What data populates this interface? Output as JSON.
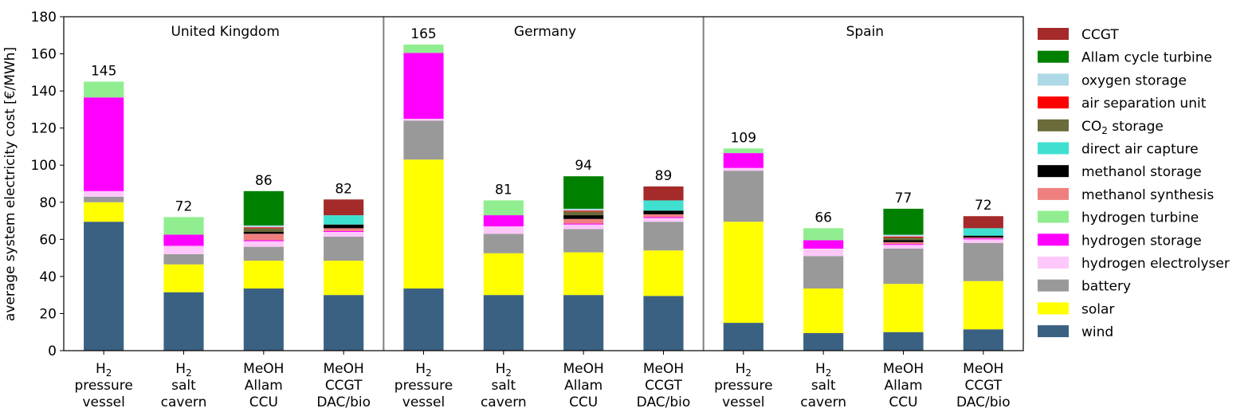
{
  "chart_data": {
    "type": "bar",
    "stacked": true,
    "ylabel": "average system electricity cost [€/MWh]",
    "ylim": [
      0,
      180
    ],
    "yticks": [
      0,
      20,
      40,
      60,
      80,
      100,
      120,
      140,
      160,
      180
    ],
    "grid": false,
    "legend_position": "right",
    "groups": [
      {
        "name": "United Kingdom",
        "categories": [
          {
            "line1": "H",
            "sub": "2",
            "line2": "pressure",
            "line3": "vessel",
            "total": "145"
          },
          {
            "line1": "H",
            "sub": "2",
            "line2": "salt",
            "line3": "cavern",
            "total": "72"
          },
          {
            "line1": "MeOH",
            "sub": "",
            "line2": "Allam",
            "line3": "CCU",
            "total": "86"
          },
          {
            "line1": "MeOH",
            "sub": "",
            "line2": "CCGT",
            "line3": "DAC/bio",
            "total": "82"
          }
        ]
      },
      {
        "name": "Germany",
        "categories": [
          {
            "line1": "H",
            "sub": "2",
            "line2": "pressure",
            "line3": "vessel",
            "total": "165"
          },
          {
            "line1": "H",
            "sub": "2",
            "line2": "salt",
            "line3": "cavern",
            "total": "81"
          },
          {
            "line1": "MeOH",
            "sub": "",
            "line2": "Allam",
            "line3": "CCU",
            "total": "94"
          },
          {
            "line1": "MeOH",
            "sub": "",
            "line2": "CCGT",
            "line3": "DAC/bio",
            "total": "89"
          }
        ]
      },
      {
        "name": "Spain",
        "categories": [
          {
            "line1": "H",
            "sub": "2",
            "line2": "pressure",
            "line3": "vessel",
            "total": "109"
          },
          {
            "line1": "H",
            "sub": "2",
            "line2": "salt",
            "line3": "cavern",
            "total": "66"
          },
          {
            "line1": "MeOH",
            "sub": "",
            "line2": "Allam",
            "line3": "CCU",
            "total": "77"
          },
          {
            "line1": "MeOH",
            "sub": "",
            "line2": "CCGT",
            "line3": "DAC/bio",
            "total": "72"
          }
        ]
      }
    ],
    "series": [
      {
        "name": "wind",
        "color": "#3b6182",
        "values": [
          69.5,
          31.5,
          33.5,
          30,
          33.5,
          30,
          30,
          29.5,
          15,
          9.5,
          10,
          11.5
        ]
      },
      {
        "name": "solar",
        "color": "#ffff00",
        "values": [
          10.5,
          15,
          15,
          18.5,
          69.5,
          22.5,
          23,
          24.5,
          54.5,
          24,
          26,
          26
        ]
      },
      {
        "name": "battery",
        "color": "#999999",
        "values": [
          3,
          5.5,
          7.5,
          13,
          21,
          10.5,
          12.5,
          15.5,
          27.5,
          17.5,
          19,
          20.5
        ]
      },
      {
        "name": "hydrogen electrolyser",
        "color": "#ffc8fb",
        "values": [
          3,
          4.5,
          3,
          2.5,
          1,
          4,
          2.5,
          2,
          1.5,
          4,
          2,
          2
        ]
      },
      {
        "name": "hydrogen storage",
        "color": "#ff00ff",
        "values": [
          50.5,
          6,
          0.5,
          0.5,
          35.5,
          6,
          0.5,
          0.5,
          8,
          4.5,
          0.5,
          0.5
        ]
      },
      {
        "name": "hydrogen turbine",
        "color": "#90ee90",
        "values": [
          8.5,
          9.5,
          0,
          0,
          4.5,
          8,
          0,
          0,
          2.5,
          6.5,
          0,
          0
        ]
      },
      {
        "name": "methanol synthesis",
        "color": "#f08080",
        "values": [
          0,
          0,
          3.5,
          1.5,
          0,
          0,
          2.5,
          1.5,
          0,
          0,
          1,
          0.5
        ]
      },
      {
        "name": "methanol storage",
        "color": "#000000",
        "values": [
          0,
          0,
          1,
          2,
          0,
          0,
          2,
          2,
          0,
          0,
          1,
          1
        ]
      },
      {
        "name": "direct air capture",
        "color": "#40e0d0",
        "values": [
          0,
          0,
          0,
          5,
          0,
          0,
          0,
          5.5,
          0,
          0,
          0,
          4
        ]
      },
      {
        "name": "CO₂ storage",
        "color": "#6b6b3b",
        "values": [
          0,
          0,
          2,
          0,
          0,
          0,
          2,
          0,
          0,
          0,
          1.5,
          0
        ]
      },
      {
        "name": "air separation unit",
        "color": "#ff0000",
        "values": [
          0,
          0,
          0.5,
          0,
          0,
          0,
          0.5,
          0,
          0,
          0,
          0.5,
          0
        ]
      },
      {
        "name": "oxygen storage",
        "color": "#add8e6",
        "values": [
          0,
          0,
          1,
          0,
          0,
          0,
          1,
          0,
          0,
          0,
          1,
          0
        ]
      },
      {
        "name": "Allam cycle turbine",
        "color": "#008000",
        "values": [
          0,
          0,
          18.5,
          0,
          0,
          0,
          17.5,
          0,
          0,
          0,
          14,
          0
        ]
      },
      {
        "name": "CCGT",
        "color": "#a52a2a",
        "values": [
          0,
          0,
          0,
          8.5,
          0,
          0,
          0,
          7.5,
          0,
          0,
          0,
          6.5
        ]
      }
    ]
  }
}
